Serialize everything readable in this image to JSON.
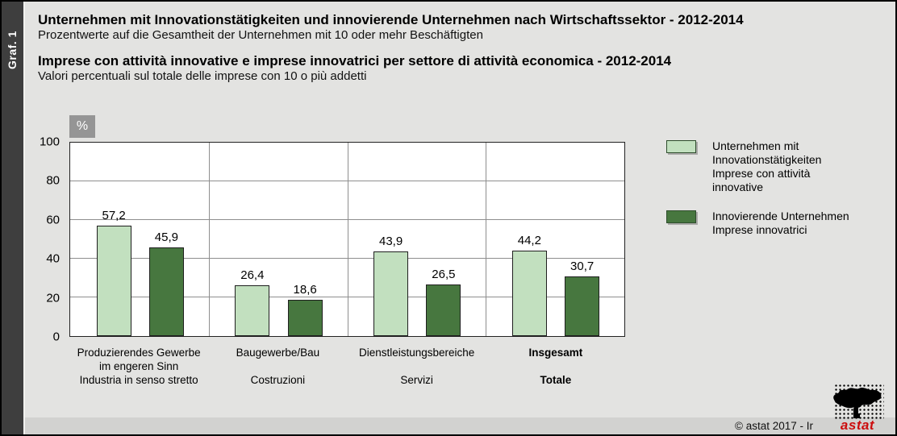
{
  "side_tab": {
    "label": "Graf. 1"
  },
  "header": {
    "title_de": "Unternehmen mit Innovationstätigkeiten und innovierende Unternehmen nach Wirtschaftssektor - 2012-2014",
    "subtitle_de": "Prozentwerte auf die Gesamtheit der Unternehmen mit 10 oder mehr Beschäftigten",
    "title_it": "Imprese con attività innovative e imprese innovatrici per settore di attività economica - 2012-2014",
    "subtitle_it": "Valori percentuali sul totale delle imprese con 10 o più addetti"
  },
  "chart": {
    "unit_label": "%",
    "y_ticks": [
      100,
      80,
      60,
      40,
      20,
      0
    ],
    "grid_values": [
      20,
      40,
      60,
      80
    ]
  },
  "chart_data": {
    "type": "bar",
    "title": "Unternehmen mit Innovationstätigkeiten und innovierende Unternehmen nach Wirtschaftssektor / Imprese con attività innovative e imprese innovatrici per settore di attività economica - 2012-2014",
    "xlabel": "",
    "ylabel": "%",
    "ylim": [
      0,
      100
    ],
    "grid": true,
    "legend_position": "right",
    "categories": [
      "Produzierendes Gewerbe im engeren Sinn / Industria in senso stretto",
      "Baugewerbe/Bau / Costruzioni",
      "Dienstleistungsbereiche / Servizi",
      "Insgesamt / Totale"
    ],
    "series": [
      {
        "name": "Unternehmen mit Innovationstätigkeiten / Imprese con attività innovative",
        "color": "#c2e0bf",
        "values": [
          57.2,
          26.4,
          43.9,
          44.2
        ],
        "labels": [
          "57,2",
          "26,4",
          "43,9",
          "44,2"
        ]
      },
      {
        "name": "Innovierende Unternehmen / Imprese innovatrici",
        "color": "#47773f",
        "values": [
          45.9,
          18.6,
          26.5,
          30.7
        ],
        "labels": [
          "45,9",
          "18,6",
          "26,5",
          "30,7"
        ]
      }
    ]
  },
  "categories": [
    {
      "lines": [
        "Produzierendes Gewerbe",
        "im engeren Sinn",
        "Industria in senso stretto"
      ],
      "bold": false
    },
    {
      "lines": [
        "Baugewerbe/Bau",
        "",
        "Costruzioni"
      ],
      "bold": false
    },
    {
      "lines": [
        "Dienstleistungsbereiche",
        "",
        "Servizi"
      ],
      "bold": false
    },
    {
      "lines": [
        "Insgesamt",
        "",
        "Totale"
      ],
      "bold": true
    }
  ],
  "legend": {
    "items": [
      {
        "lines": [
          "Unternehmen mit",
          "Innovationstätigkeiten",
          "Imprese con attività",
          "innovative"
        ],
        "color": "#c2e0bf"
      },
      {
        "lines": [
          "Innovierende Unternehmen",
          "Imprese innovatrici"
        ],
        "color": "#47773f"
      }
    ]
  },
  "footer": {
    "copyright": "© astat 2017 - Ir",
    "logo_text": "astat"
  },
  "colors": {
    "light_green": "#c2e0bf",
    "dark_green": "#47773f",
    "accent_red": "#cc0d0d"
  }
}
